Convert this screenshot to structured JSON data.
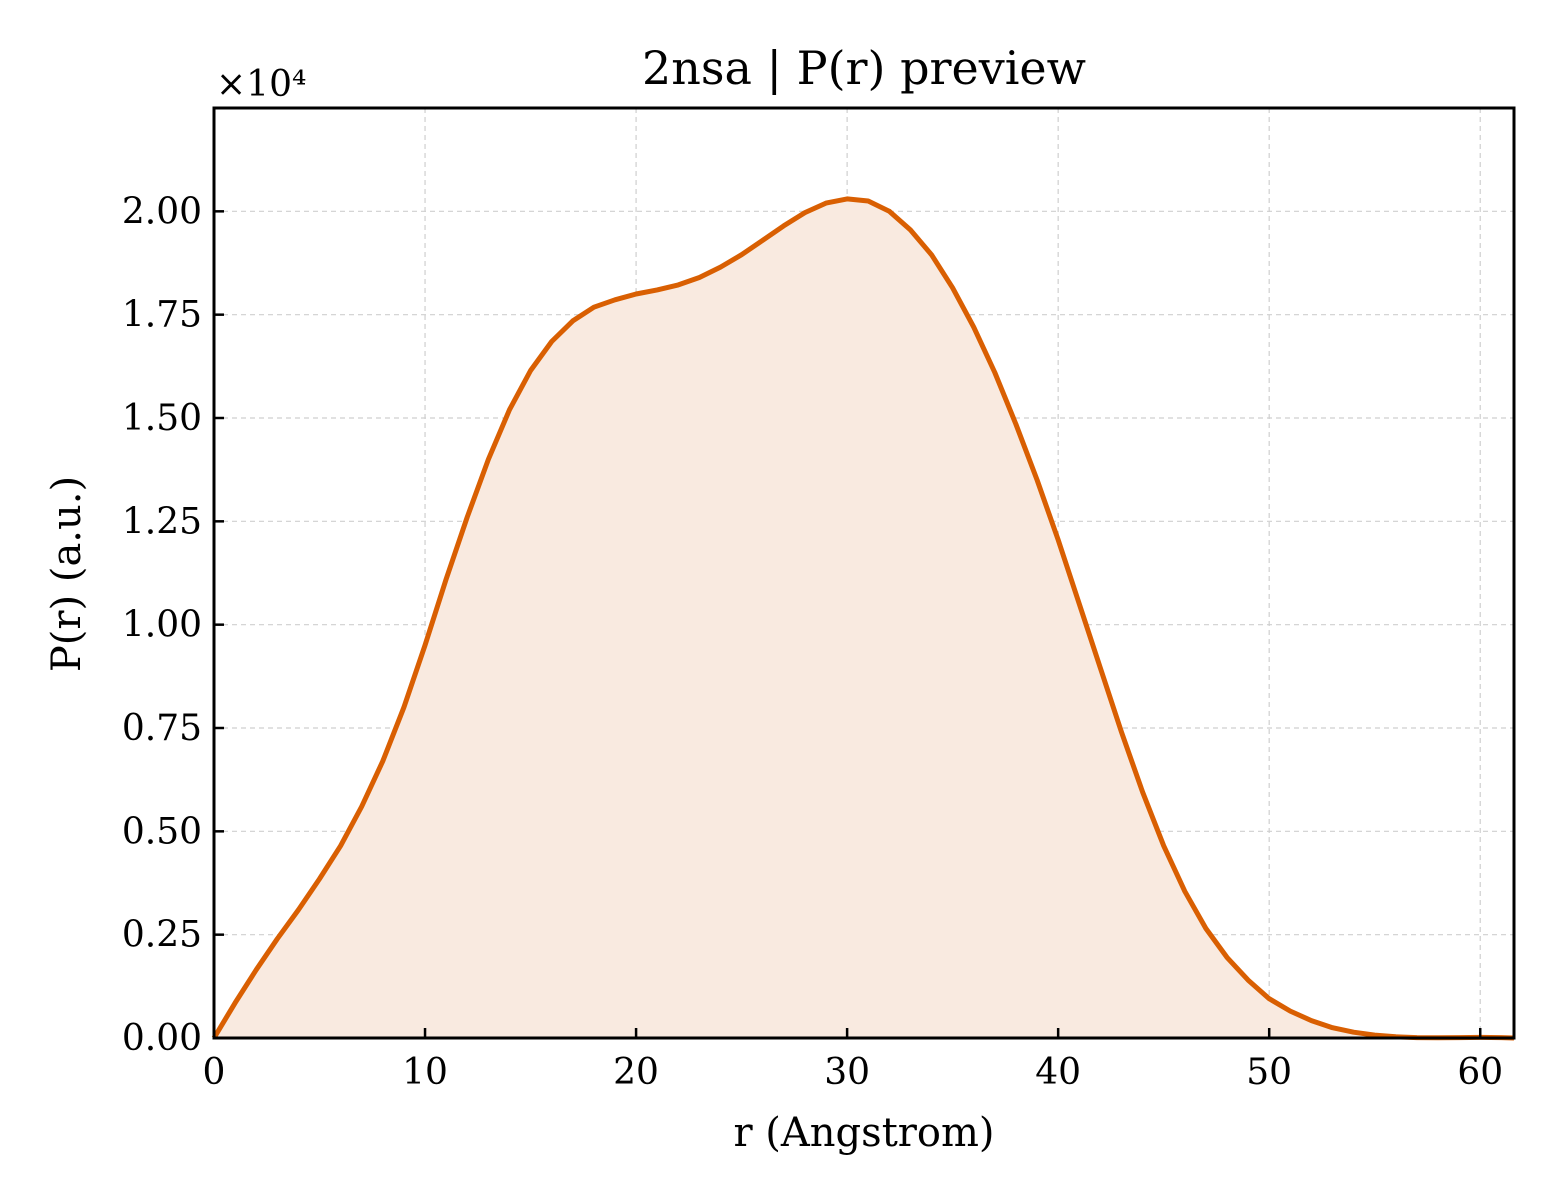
{
  "chart_data": {
    "type": "area",
    "title": "2nsa | P(r) preview",
    "xlabel": "r (Angstrom)",
    "ylabel": "P(r) (a.u.)",
    "y_multiplier_label": "×10⁴",
    "y_scale": 10000,
    "xlim": [
      0,
      61.6
    ],
    "ylim": [
      0,
      22500
    ],
    "xticks": [
      0,
      10,
      20,
      30,
      40,
      50,
      60
    ],
    "yticks": [
      0,
      2500,
      5000,
      7500,
      10000,
      12500,
      15000,
      17500,
      20000
    ],
    "ytick_labels": [
      "0.00",
      "0.25",
      "0.50",
      "0.75",
      "1.00",
      "1.25",
      "1.50",
      "1.75",
      "2.00"
    ],
    "grid": true,
    "colors": {
      "line": "#d95f02",
      "fill": "#f9eae0"
    },
    "series": [
      {
        "x": [
          0,
          1,
          2,
          3,
          4,
          5,
          6,
          7,
          8,
          9,
          10,
          11,
          12,
          13,
          14,
          15,
          16,
          17,
          18,
          19,
          20,
          21,
          22,
          23,
          24,
          25,
          26,
          27,
          28,
          29,
          30,
          31,
          32,
          33,
          34,
          35,
          36,
          37,
          38,
          39,
          40,
          41,
          42,
          43,
          44,
          45,
          46,
          47,
          48,
          49,
          50,
          51,
          52,
          53,
          54,
          55,
          56,
          57,
          58,
          59,
          60,
          61,
          61.6
        ],
        "y": [
          0,
          850,
          1650,
          2400,
          3100,
          3850,
          4650,
          5600,
          6700,
          8000,
          9500,
          11100,
          12600,
          14000,
          15200,
          16150,
          16850,
          17350,
          17680,
          17860,
          18000,
          18100,
          18220,
          18400,
          18650,
          18950,
          19300,
          19650,
          19970,
          20200,
          20300,
          20250,
          20000,
          19550,
          18950,
          18150,
          17200,
          16100,
          14850,
          13500,
          12050,
          10500,
          8950,
          7400,
          5950,
          4650,
          3550,
          2650,
          1950,
          1400,
          950,
          650,
          420,
          250,
          140,
          70,
          30,
          10,
          5,
          10,
          15,
          10,
          0
        ]
      }
    ]
  }
}
